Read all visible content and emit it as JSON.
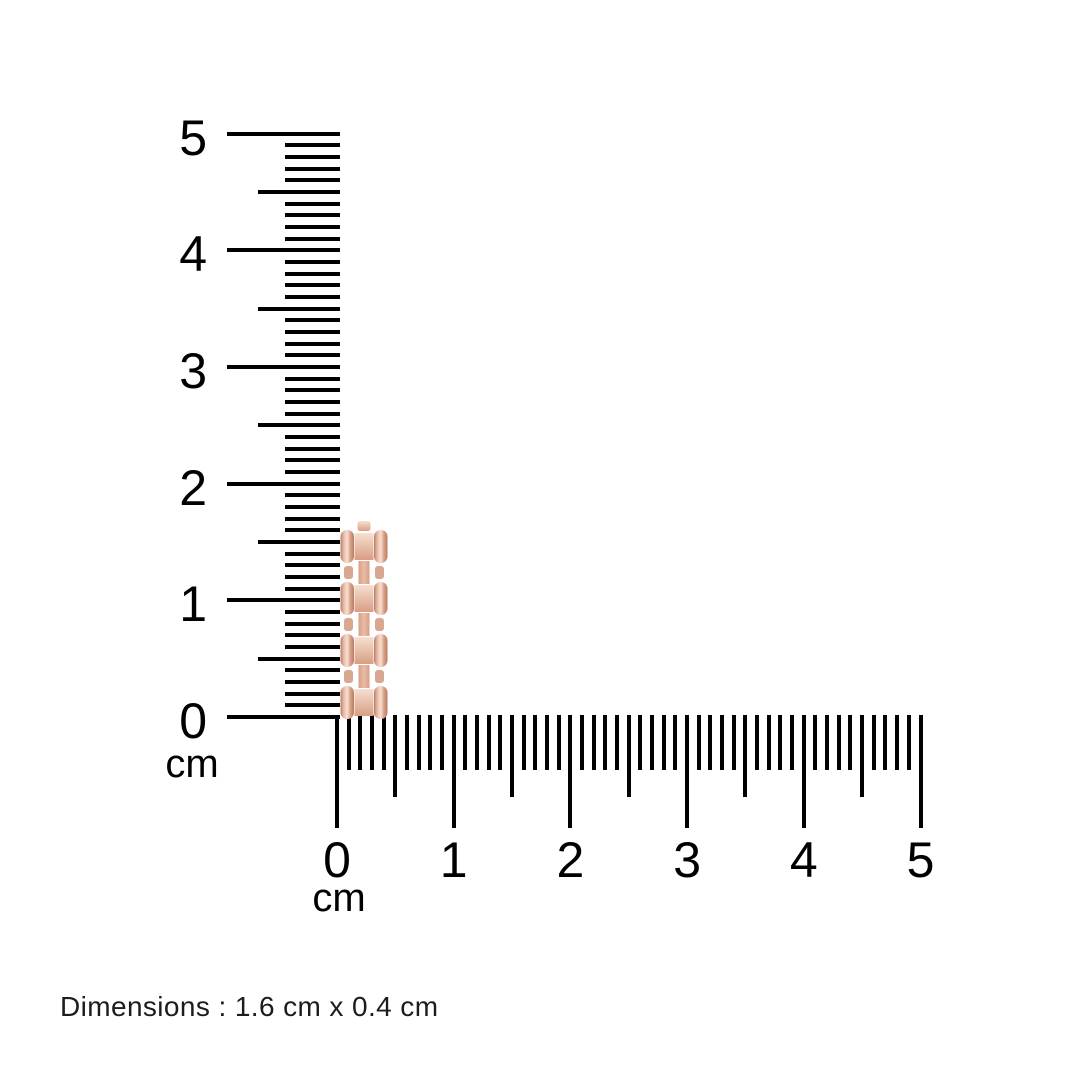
{
  "page": {
    "background_color": "#ffffff",
    "tick_color": "#000000",
    "text_color": "#000000"
  },
  "rulers": {
    "vertical": {
      "unit_label": "cm",
      "min": 0,
      "max": 5,
      "minor_step": 0.1,
      "major_labels": [
        "0",
        "1",
        "2",
        "3",
        "4",
        "5"
      ]
    },
    "horizontal": {
      "unit_label": "cm",
      "min": 0,
      "max": 5,
      "minor_step": 0.1,
      "major_labels": [
        "0",
        "1",
        "2",
        "3",
        "4",
        "5"
      ]
    }
  },
  "item": {
    "name": "rose gold chain-link band segment",
    "span_vertical_cm": 1.6,
    "span_horizontal_cm": 0.4,
    "colors": {
      "shadow": "#b87e64",
      "base": "#e9bda8",
      "light": "#f7dfd2",
      "mid": "#d89e84",
      "stub": "#d8a78f"
    }
  },
  "caption": {
    "text": "Dimensions : 1.6 cm x 0.4 cm"
  }
}
